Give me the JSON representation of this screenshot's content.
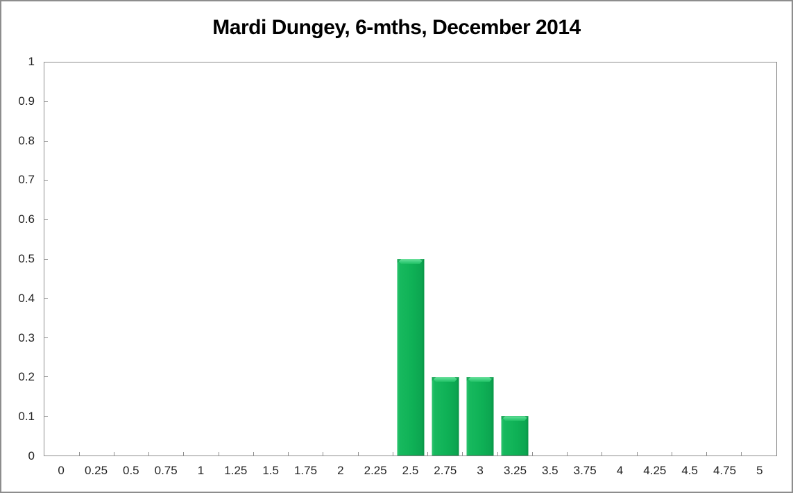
{
  "window": {
    "background_color": "#ffffff",
    "frame_border_color": "#8d8d8d"
  },
  "chart_data": {
    "type": "bar",
    "title": "Mardi Dungey, 6-mths, December 2014",
    "categories": [
      "0",
      "0.25",
      "0.5",
      "0.75",
      "1",
      "1.25",
      "1.5",
      "1.75",
      "2",
      "2.25",
      "2.5",
      "2.75",
      "3",
      "3.25",
      "3.5",
      "3.75",
      "4",
      "4.25",
      "4.5",
      "4.75",
      "5"
    ],
    "values": [
      0,
      0,
      0,
      0,
      0,
      0,
      0,
      0,
      0,
      0,
      0.5,
      0.2,
      0.2,
      0.1,
      0,
      0,
      0,
      0,
      0,
      0,
      0
    ],
    "xlabel": "",
    "ylabel": "",
    "ylim": [
      0,
      1
    ],
    "xlim_categories": [
      0,
      5
    ],
    "ytick_labels": [
      "0",
      "0.1",
      "0.2",
      "0.3",
      "0.4",
      "0.5",
      "0.6",
      "0.7",
      "0.8",
      "0.9",
      "1"
    ],
    "grid": false,
    "legend": null,
    "bar_color": "#0fb156",
    "bar_highlight_color": "#6ce09c",
    "bar_edge_dark_color": "#089546",
    "axis_line_color": "#8d8d8d",
    "tick_label_color": "#242424",
    "title_color": "#000000"
  }
}
